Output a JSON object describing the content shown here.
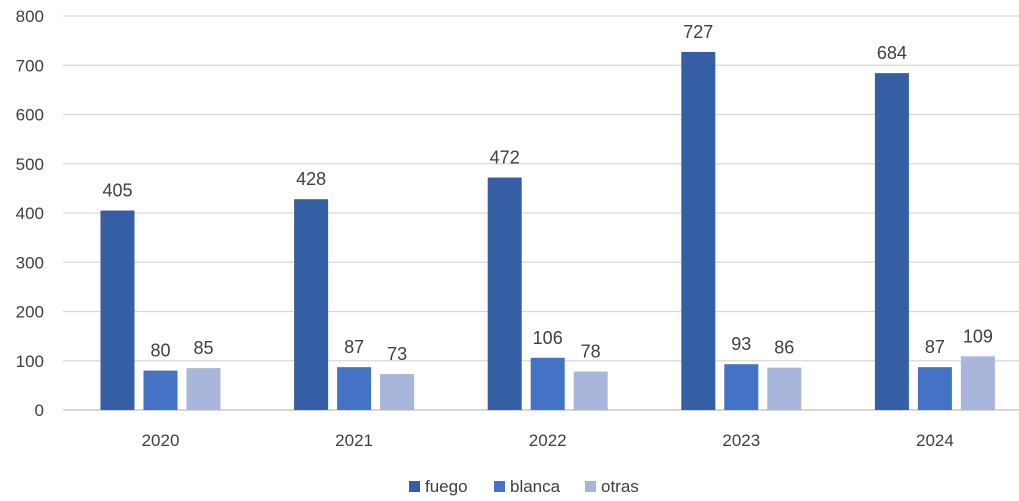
{
  "chart_data": {
    "type": "bar",
    "title": "",
    "xlabel": "",
    "ylabel": "",
    "categories": [
      "2020",
      "2021",
      "2022",
      "2023",
      "2024"
    ],
    "series": [
      {
        "name": "fuego",
        "values": [
          405,
          428,
          472,
          727,
          684
        ],
        "color": "#355EA4"
      },
      {
        "name": "blanca",
        "values": [
          80,
          87,
          106,
          93,
          87
        ],
        "color": "#4472C4"
      },
      {
        "name": "otras",
        "values": [
          85,
          73,
          78,
          86,
          109
        ],
        "color": "#A9B6DB"
      }
    ],
    "ylim": [
      0,
      800
    ],
    "yticks": [
      "0",
      "100",
      "200",
      "300",
      "400",
      "500",
      "600",
      "700",
      "800"
    ],
    "grid": true,
    "legend_position": "bottom",
    "data_labels": true
  }
}
